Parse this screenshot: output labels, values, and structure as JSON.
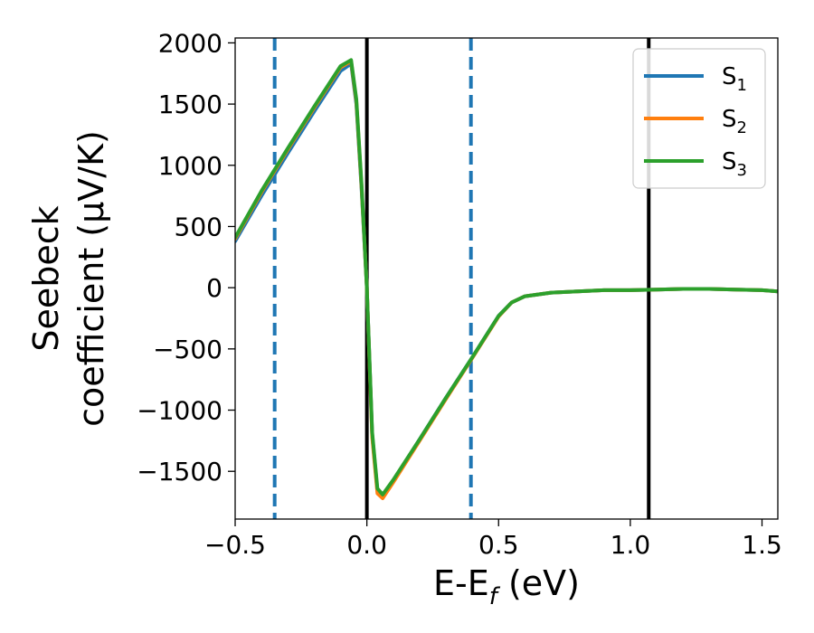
{
  "chart_data": {
    "type": "line",
    "xlabel": "E-E",
    "xlabel_sub": "f",
    "xlabel_unit": " (eV)",
    "ylabel_line1": "Seebeck",
    "ylabel_line2": "coefficient  (μV/K)",
    "xlim": [
      -0.5,
      1.56
    ],
    "ylim": [
      -1890,
      2040
    ],
    "x_ticks": [
      -0.5,
      0.0,
      0.5,
      1.0,
      1.5
    ],
    "x_tick_labels": [
      "−0.5",
      "0.0",
      "0.5",
      "1.0",
      "1.5"
    ],
    "y_ticks": [
      -1500,
      -1000,
      -500,
      0,
      500,
      1000,
      1500,
      2000
    ],
    "y_tick_labels": [
      "−1500",
      "−1000",
      "−500",
      "0",
      "500",
      "1000",
      "1500",
      "2000"
    ],
    "grid": false,
    "legend_position": "top-right",
    "vertical_lines": [
      {
        "x": -0.35,
        "style": "dashed",
        "color": "#1f77b4"
      },
      {
        "x": 0.0,
        "style": "solid",
        "color": "#000000"
      },
      {
        "x": 0.395,
        "style": "dashed",
        "color": "#1f77b4"
      },
      {
        "x": 1.07,
        "style": "solid",
        "color": "#000000"
      }
    ],
    "series": [
      {
        "name": "S",
        "sub": "1",
        "color": "#1f77b4",
        "x": [
          -0.5,
          -0.4,
          -0.3,
          -0.2,
          -0.1,
          -0.06,
          -0.04,
          -0.02,
          0.0,
          0.02,
          0.04,
          0.06,
          0.1,
          0.2,
          0.3,
          0.4,
          0.5,
          0.55,
          0.6,
          0.7,
          0.8,
          0.9,
          1.0,
          1.1,
          1.2,
          1.3,
          1.4,
          1.5,
          1.56
        ],
        "y": [
          380,
          750,
          1100,
          1440,
          1770,
          1830,
          1500,
          800,
          0,
          -1200,
          -1660,
          -1700,
          -1580,
          -1240,
          -900,
          -570,
          -230,
          -120,
          -70,
          -40,
          -30,
          -20,
          -20,
          -15,
          -10,
          -10,
          -15,
          -20,
          -30
        ]
      },
      {
        "name": "S",
        "sub": "2",
        "color": "#ff7f0e",
        "x": [
          -0.5,
          -0.4,
          -0.3,
          -0.2,
          -0.1,
          -0.06,
          -0.04,
          -0.02,
          0.0,
          0.02,
          0.04,
          0.06,
          0.1,
          0.2,
          0.3,
          0.4,
          0.5,
          0.55,
          0.6,
          0.7,
          0.8,
          0.9,
          1.0,
          1.1,
          1.2,
          1.3,
          1.4,
          1.5,
          1.56
        ],
        "y": [
          400,
          780,
          1130,
          1470,
          1800,
          1850,
          1520,
          820,
          0,
          -1220,
          -1680,
          -1720,
          -1590,
          -1250,
          -910,
          -575,
          -235,
          -120,
          -70,
          -40,
          -30,
          -20,
          -20,
          -15,
          -10,
          -10,
          -15,
          -20,
          -30
        ]
      },
      {
        "name": "S",
        "sub": "3",
        "color": "#2ca02c",
        "x": [
          -0.5,
          -0.4,
          -0.3,
          -0.2,
          -0.1,
          -0.06,
          -0.04,
          -0.02,
          0.0,
          0.02,
          0.04,
          0.06,
          0.1,
          0.2,
          0.3,
          0.4,
          0.5,
          0.55,
          0.6,
          0.7,
          0.8,
          0.9,
          1.0,
          1.1,
          1.2,
          1.3,
          1.4,
          1.5,
          1.56
        ],
        "y": [
          410,
          790,
          1140,
          1480,
          1810,
          1860,
          1540,
          840,
          0,
          -1180,
          -1640,
          -1690,
          -1570,
          -1240,
          -900,
          -570,
          -230,
          -120,
          -70,
          -40,
          -30,
          -20,
          -20,
          -15,
          -10,
          -10,
          -15,
          -20,
          -30
        ]
      }
    ]
  }
}
